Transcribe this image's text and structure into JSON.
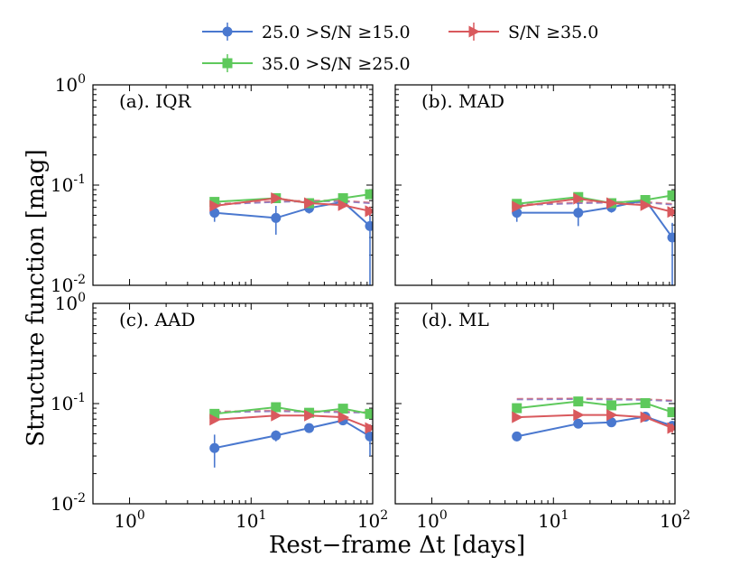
{
  "legend": [
    {
      "label": "25.0 >S/N ≥15.0",
      "color": "#4a78cf",
      "marker": "circle"
    },
    {
      "label": "S/N ≥35.0",
      "color": "#d9595d",
      "marker": "triangle-right"
    },
    {
      "label": "35.0 >S/N ≥25.0",
      "color": "#5ec95c",
      "marker": "square"
    }
  ],
  "axes": {
    "xlabel": "Rest−frame Δt [days]",
    "ylabel": "Structure function [mag]"
  },
  "chart_data": {
    "type": "line",
    "x_scale": "log",
    "y_scale": "log",
    "xlim": [
      0.5,
      100
    ],
    "ylim": [
      0.01,
      1
    ],
    "x_ticks": [
      1,
      10,
      100
    ],
    "y_ticks": [
      0.01,
      0.1,
      1
    ],
    "x_tick_labels": [
      {
        "base": "10",
        "exp": "0"
      },
      {
        "base": "10",
        "exp": "1"
      },
      {
        "base": "10",
        "exp": "2"
      }
    ],
    "y_tick_labels": [
      {
        "base": "10",
        "exp": "-2"
      },
      {
        "base": "10",
        "exp": "-1"
      },
      {
        "base": "10",
        "exp": "0"
      }
    ],
    "x": [
      5,
      16,
      30,
      57,
      95
    ],
    "panels": [
      {
        "label": "(a). IQR",
        "dashed": [
          0.064,
          0.068,
          0.069,
          0.069,
          0.066
        ],
        "series": [
          {
            "name": "25.0 >S/N ≥15.0",
            "color": "#4a78cf",
            "marker": "circle",
            "values": [
              0.053,
              0.047,
              0.059,
              0.068,
              0.039
            ],
            "err_low": [
              0.01,
              0.015,
              0.007,
              0.006,
              0.035
            ],
            "err_high": [
              0.01,
              0.015,
              0.007,
              0.006,
              0.012
            ]
          },
          {
            "name": "35.0 >S/N ≥25.0",
            "color": "#5ec95c",
            "marker": "square",
            "values": [
              0.068,
              0.074,
              0.066,
              0.074,
              0.081
            ],
            "err_low": [
              0.004,
              0.004,
              0.004,
              0.004,
              0.005
            ],
            "err_high": [
              0.004,
              0.004,
              0.004,
              0.004,
              0.005
            ]
          },
          {
            "name": "S/N ≥35.0",
            "color": "#d9595d",
            "marker": "triangle-right",
            "values": [
              0.062,
              0.074,
              0.066,
              0.063,
              0.055
            ],
            "err_low": [
              0.003,
              0.003,
              0.003,
              0.003,
              0.006
            ],
            "err_high": [
              0.003,
              0.003,
              0.003,
              0.003,
              0.006
            ]
          }
        ]
      },
      {
        "label": "(b). MAD",
        "dashed": [
          0.063,
          0.066,
          0.067,
          0.067,
          0.064
        ],
        "series": [
          {
            "name": "25.0 >S/N ≥15.0",
            "color": "#4a78cf",
            "marker": "circle",
            "values": [
              0.053,
              0.053,
              0.06,
              0.071,
              0.03
            ],
            "err_low": [
              0.01,
              0.014,
              0.007,
              0.006,
              0.025
            ],
            "err_high": [
              0.01,
              0.014,
              0.007,
              0.006,
              0.012
            ]
          },
          {
            "name": "35.0 >S/N ≥25.0",
            "color": "#5ec95c",
            "marker": "square",
            "values": [
              0.065,
              0.076,
              0.066,
              0.071,
              0.079
            ],
            "err_low": [
              0.004,
              0.004,
              0.004,
              0.004,
              0.005
            ],
            "err_high": [
              0.004,
              0.004,
              0.004,
              0.004,
              0.005
            ]
          },
          {
            "name": "S/N ≥35.0",
            "color": "#d9595d",
            "marker": "triangle-right",
            "values": [
              0.061,
              0.073,
              0.066,
              0.063,
              0.054
            ],
            "err_low": [
              0.003,
              0.003,
              0.003,
              0.003,
              0.006
            ],
            "err_high": [
              0.003,
              0.003,
              0.003,
              0.003,
              0.006
            ]
          }
        ]
      },
      {
        "label": "(c). AAD",
        "dashed": [
          0.082,
          0.084,
          0.083,
          0.082,
          0.081
        ],
        "series": [
          {
            "name": "25.0 >S/N ≥15.0",
            "color": "#4a78cf",
            "marker": "circle",
            "values": [
              0.036,
              0.048,
              0.057,
              0.068,
              0.047
            ],
            "err_low": [
              0.013,
              0.006,
              0.006,
              0.005,
              0.017
            ],
            "err_high": [
              0.013,
              0.006,
              0.006,
              0.005,
              0.015
            ]
          },
          {
            "name": "35.0 >S/N ≥25.0",
            "color": "#5ec95c",
            "marker": "square",
            "values": [
              0.079,
              0.092,
              0.081,
              0.089,
              0.079
            ],
            "err_low": [
              0.004,
              0.004,
              0.004,
              0.004,
              0.006
            ],
            "err_high": [
              0.004,
              0.004,
              0.004,
              0.004,
              0.006
            ]
          },
          {
            "name": "S/N ≥35.0",
            "color": "#d9595d",
            "marker": "triangle-right",
            "values": [
              0.069,
              0.076,
              0.076,
              0.073,
              0.057
            ],
            "err_low": [
              0.003,
              0.003,
              0.003,
              0.003,
              0.005
            ],
            "err_high": [
              0.003,
              0.003,
              0.003,
              0.003,
              0.005
            ]
          }
        ]
      },
      {
        "label": "(d). ML",
        "dashed": [
          0.11,
          0.111,
          0.11,
          0.109,
          0.106
        ],
        "series": [
          {
            "name": "25.0 >S/N ≥15.0",
            "color": "#4a78cf",
            "marker": "circle",
            "values": [
              0.047,
              0.063,
              0.065,
              0.074,
              0.06
            ],
            "err_low": [
              0.005,
              0.004,
              0.004,
              0.004,
              0.007
            ],
            "err_high": [
              0.005,
              0.004,
              0.004,
              0.004,
              0.007
            ]
          },
          {
            "name": "35.0 >S/N ≥25.0",
            "color": "#5ec95c",
            "marker": "square",
            "values": [
              0.09,
              0.105,
              0.096,
              0.101,
              0.082
            ],
            "err_low": [
              0.004,
              0.004,
              0.004,
              0.004,
              0.006
            ],
            "err_high": [
              0.004,
              0.004,
              0.004,
              0.004,
              0.006
            ]
          },
          {
            "name": "S/N ≥35.0",
            "color": "#d9595d",
            "marker": "triangle-right",
            "values": [
              0.073,
              0.077,
              0.077,
              0.073,
              0.057
            ],
            "err_low": [
              0.003,
              0.003,
              0.003,
              0.003,
              0.006
            ],
            "err_high": [
              0.003,
              0.003,
              0.003,
              0.003,
              0.006
            ]
          }
        ]
      }
    ]
  }
}
